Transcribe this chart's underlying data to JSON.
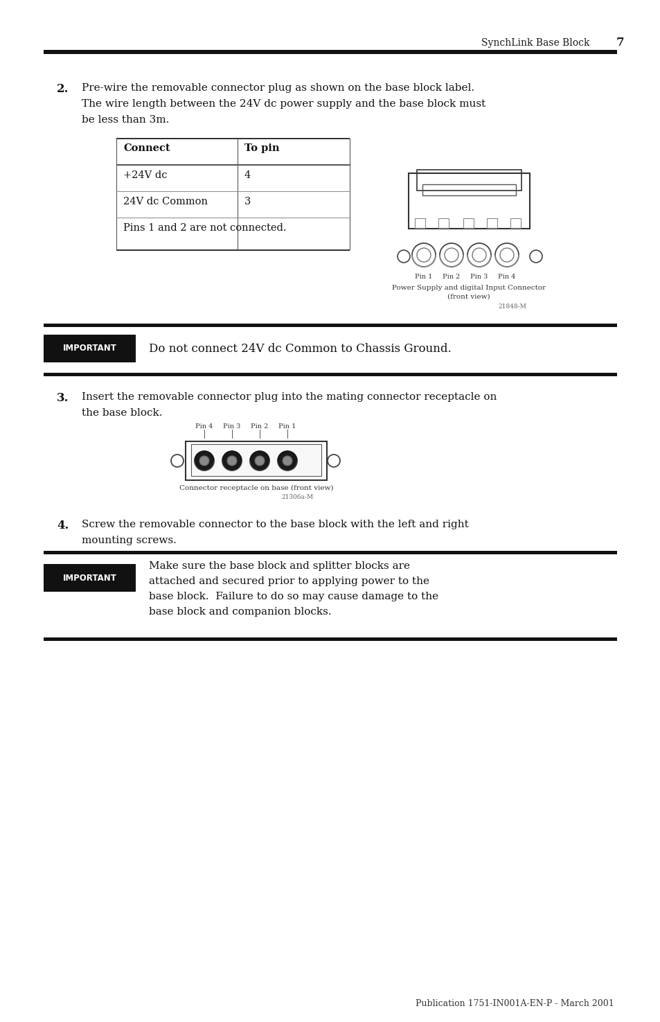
{
  "bg_color": "#ffffff",
  "header_text": "SynchLink Base Block",
  "page_num": "7",
  "step2_number": "2.",
  "step2_text_line1": "Pre-wire the removable connector plug as shown on the base block label.",
  "step2_text_line2": "The wire length between the 24V dc power supply and the base block must",
  "step2_text_line3": "be less than 3m.",
  "table_col1_header": "Connect",
  "table_col2_header": "To pin",
  "table_row1_col1": "+24V dc",
  "table_row1_col2": "4",
  "table_row2_col1": "24V dc Common",
  "table_row2_col2": "3",
  "table_row3_col1": "Pins 1 and 2 are not connected.",
  "connector_caption1": "Power Supply and digital Input Connector",
  "connector_caption2": "(front view)",
  "connector_fignum": "21848-M",
  "pin_labels": [
    "Pin 1",
    "Pin 2",
    "Pin 3",
    "Pin 4"
  ],
  "important1_text": "Do not connect 24V dc Common to Chassis Ground.",
  "step3_number": "3.",
  "step3_text_line1": "Insert the removable connector plug into the mating connector receptacle on",
  "step3_text_line2": "the base block.",
  "connector2_caption": "Connector receptacle on base (front view)",
  "connector2_fignum": "21306a-M",
  "pin2_labels": [
    "Pin 4",
    "Pin 3",
    "Pin 2",
    "Pin 1"
  ],
  "step4_number": "4.",
  "step4_text_line1": "Screw the removable connector to the base block with the left and right",
  "step4_text_line2": "mounting screws.",
  "important2_line1": "Make sure the base block and splitter blocks are",
  "important2_line2": "attached and secured prior to applying power to the",
  "important2_line3": "base block.  Failure to do so may cause damage to the",
  "important2_line4": "base block and companion blocks.",
  "footer_text": "Publication 1751-IN001A-EN-P - March 2001",
  "font_serif": "DejaVu Serif",
  "font_sans": "DejaVu Sans"
}
